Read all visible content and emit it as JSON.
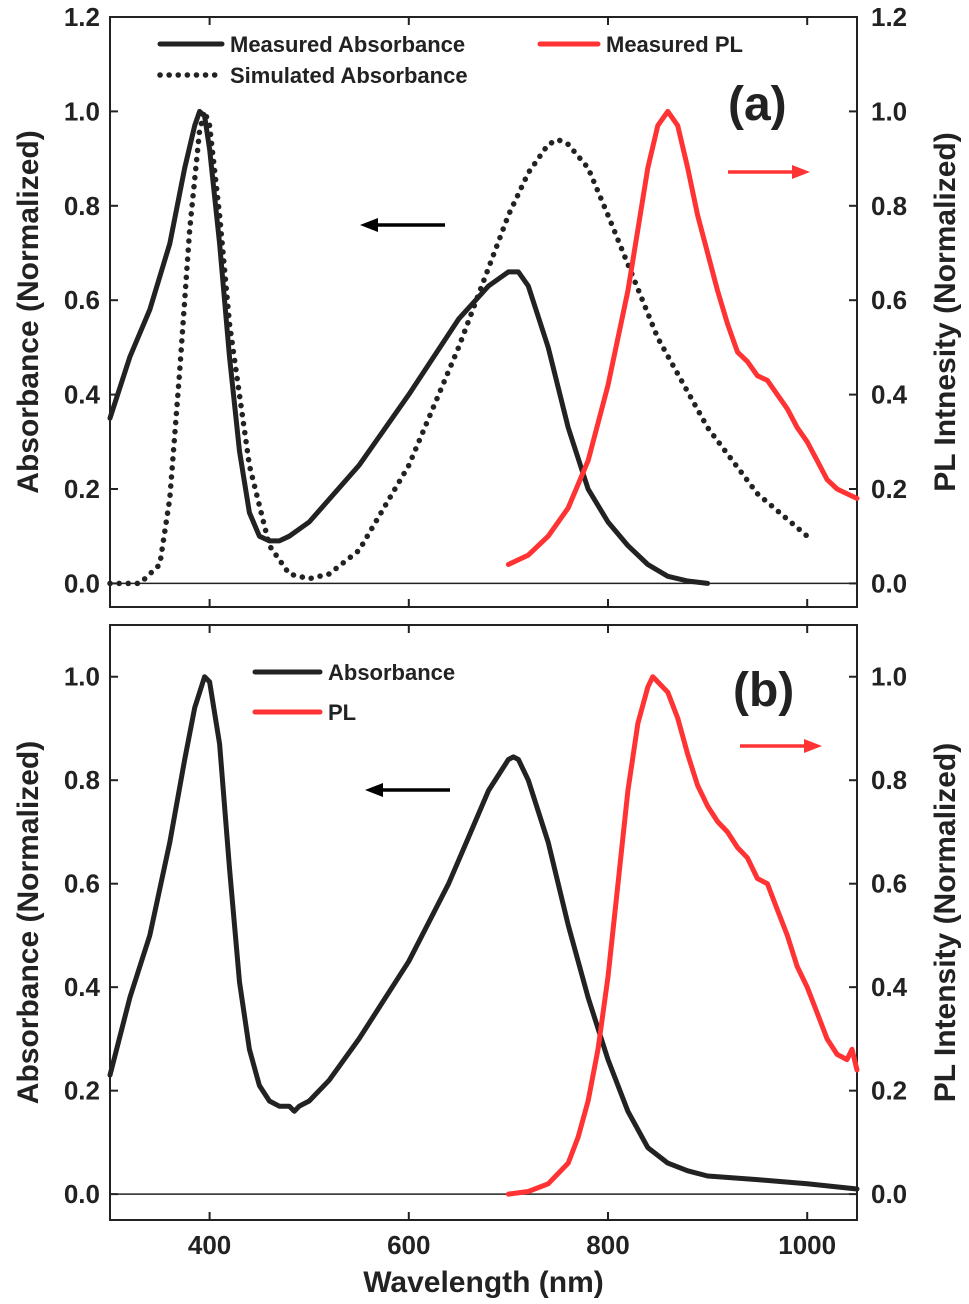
{
  "chart_data": [
    {
      "type": "line",
      "panel_label": "(a)",
      "xlabel": "",
      "ylabel_left": "Absorbance (Normalized)",
      "ylabel_right": "PL Intnesity (Normalized)",
      "xlim": [
        300,
        1050
      ],
      "ylim_left": [
        -0.05,
        1.2
      ],
      "ylim_right": [
        -0.05,
        1.2
      ],
      "yticks_left": [
        "0.0",
        "0.2",
        "0.4",
        "0.6",
        "0.8",
        "1.0",
        "1.2"
      ],
      "yticks_right": [
        "0.0",
        "0.2",
        "0.4",
        "0.6",
        "0.8",
        "1.0",
        "1.2"
      ],
      "grid": false,
      "zero_line": true,
      "legend_position": "top",
      "annotations": [
        {
          "type": "arrow",
          "direction": "left",
          "color": "#000000",
          "meaning": "left axis"
        },
        {
          "type": "arrow",
          "direction": "right",
          "color": "#ff3333",
          "meaning": "right axis"
        }
      ],
      "series": [
        {
          "name": "Measured Absorbance",
          "axis": "left",
          "color": "#222222",
          "style": "solid",
          "x": [
            300,
            320,
            340,
            360,
            375,
            385,
            390,
            395,
            400,
            410,
            420,
            430,
            440,
            450,
            460,
            470,
            480,
            500,
            550,
            600,
            650,
            680,
            700,
            710,
            720,
            740,
            760,
            780,
            800,
            820,
            840,
            860,
            880,
            900
          ],
          "y": [
            0.35,
            0.48,
            0.58,
            0.72,
            0.88,
            0.97,
            1.0,
            0.99,
            0.92,
            0.72,
            0.48,
            0.28,
            0.15,
            0.1,
            0.09,
            0.09,
            0.1,
            0.13,
            0.25,
            0.4,
            0.56,
            0.63,
            0.66,
            0.66,
            0.63,
            0.5,
            0.33,
            0.2,
            0.13,
            0.08,
            0.04,
            0.015,
            0.005,
            0.0
          ]
        },
        {
          "name": "Simulated Absorbance",
          "axis": "left",
          "color": "#222222",
          "style": "dotted",
          "x": [
            300,
            330,
            350,
            360,
            370,
            380,
            390,
            395,
            400,
            410,
            420,
            440,
            460,
            480,
            500,
            520,
            550,
            600,
            650,
            700,
            720,
            740,
            750,
            760,
            780,
            800,
            850,
            900,
            950,
            1000
          ],
          "y": [
            0.0,
            0.0,
            0.04,
            0.18,
            0.45,
            0.75,
            0.96,
            1.0,
            0.97,
            0.78,
            0.55,
            0.25,
            0.08,
            0.02,
            0.01,
            0.02,
            0.07,
            0.25,
            0.5,
            0.78,
            0.87,
            0.93,
            0.94,
            0.93,
            0.88,
            0.78,
            0.52,
            0.33,
            0.19,
            0.1
          ]
        },
        {
          "name": "Measured PL",
          "axis": "right",
          "color": "#ff3333",
          "style": "solid",
          "x": [
            700,
            720,
            740,
            760,
            780,
            800,
            820,
            830,
            840,
            850,
            860,
            870,
            880,
            890,
            900,
            910,
            920,
            930,
            940,
            950,
            960,
            970,
            980,
            990,
            1000,
            1010,
            1020,
            1030,
            1040,
            1050
          ],
          "y": [
            0.04,
            0.06,
            0.1,
            0.16,
            0.26,
            0.42,
            0.62,
            0.75,
            0.88,
            0.97,
            1.0,
            0.97,
            0.88,
            0.78,
            0.7,
            0.62,
            0.55,
            0.49,
            0.47,
            0.44,
            0.43,
            0.4,
            0.37,
            0.33,
            0.3,
            0.26,
            0.22,
            0.2,
            0.19,
            0.18
          ]
        }
      ]
    },
    {
      "type": "line",
      "panel_label": "(b)",
      "xlabel": "Wavelength (nm)",
      "ylabel_left": "Absorbance (Normalized)",
      "ylabel_right": "PL Intensity (Normalized)",
      "xlim": [
        300,
        1050
      ],
      "ylim_left": [
        -0.05,
        1.1
      ],
      "ylim_right": [
        -0.05,
        1.1
      ],
      "xticks": [
        "400",
        "600",
        "800",
        "1000"
      ],
      "yticks_left": [
        "0.0",
        "0.2",
        "0.4",
        "0.6",
        "0.8",
        "1.0"
      ],
      "yticks_right": [
        "0.0",
        "0.2",
        "0.4",
        "0.6",
        "0.8",
        "1.0"
      ],
      "grid": false,
      "zero_line": true,
      "legend_position": "top-left",
      "annotations": [
        {
          "type": "arrow",
          "direction": "left",
          "color": "#000000",
          "meaning": "left axis"
        },
        {
          "type": "arrow",
          "direction": "right",
          "color": "#ff3333",
          "meaning": "right axis"
        }
      ],
      "series": [
        {
          "name": "Absorbance",
          "axis": "left",
          "color": "#222222",
          "style": "solid",
          "x": [
            300,
            320,
            340,
            360,
            375,
            385,
            395,
            400,
            410,
            420,
            430,
            440,
            450,
            460,
            470,
            480,
            485,
            490,
            500,
            520,
            550,
            600,
            640,
            660,
            680,
            700,
            705,
            710,
            720,
            740,
            760,
            780,
            800,
            820,
            840,
            860,
            880,
            900,
            950,
            1000,
            1050
          ],
          "y": [
            0.23,
            0.38,
            0.5,
            0.68,
            0.84,
            0.94,
            1.0,
            0.99,
            0.87,
            0.63,
            0.41,
            0.28,
            0.21,
            0.18,
            0.17,
            0.17,
            0.16,
            0.17,
            0.18,
            0.22,
            0.3,
            0.45,
            0.6,
            0.69,
            0.78,
            0.84,
            0.845,
            0.84,
            0.8,
            0.68,
            0.52,
            0.38,
            0.26,
            0.16,
            0.09,
            0.06,
            0.045,
            0.035,
            0.028,
            0.02,
            0.01
          ]
        },
        {
          "name": "PL",
          "axis": "right",
          "color": "#ff3333",
          "style": "solid",
          "x": [
            700,
            720,
            740,
            760,
            770,
            780,
            790,
            800,
            810,
            820,
            830,
            840,
            845,
            850,
            860,
            870,
            880,
            890,
            900,
            910,
            920,
            930,
            940,
            950,
            960,
            970,
            980,
            990,
            1000,
            1010,
            1020,
            1030,
            1040,
            1045,
            1050
          ],
          "y": [
            0.0,
            0.005,
            0.02,
            0.06,
            0.11,
            0.18,
            0.28,
            0.42,
            0.6,
            0.78,
            0.91,
            0.98,
            1.0,
            0.99,
            0.97,
            0.92,
            0.85,
            0.79,
            0.75,
            0.72,
            0.7,
            0.67,
            0.65,
            0.61,
            0.6,
            0.55,
            0.5,
            0.44,
            0.4,
            0.35,
            0.3,
            0.27,
            0.26,
            0.28,
            0.24
          ]
        }
      ]
    }
  ]
}
